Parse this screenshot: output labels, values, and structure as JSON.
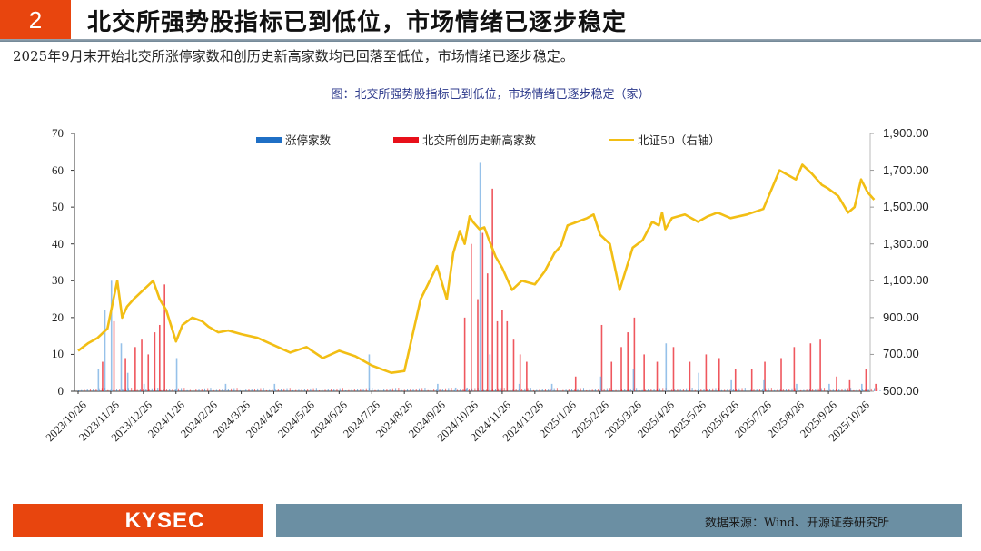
{
  "header": {
    "section_number": "2",
    "title": "北交所强势股指标已到低位，市场情绪已逐步稳定",
    "accent_color": "#e8450e"
  },
  "summary": "2025年9月末开始北交所涨停家数和创历史新高家数均已回落至低位，市场情绪已逐步稳定。",
  "figure_title": "图：北交所强势股指标已到低位，市场情绪已逐步稳定（家）",
  "footer": {
    "logo_text": "KYSEC",
    "source": "数据来源：Wind、开源证券研究所"
  },
  "chart_data": {
    "type": "bar+line",
    "title": "北交所强势股指标已到低位，市场情绪已逐步稳定（家）",
    "legend_position": "top",
    "legend": [
      {
        "name": "涨停家数",
        "color": "#1f6fc5",
        "type": "bar"
      },
      {
        "name": "北交所创历史新高家数",
        "color": "#e8101a",
        "type": "bar"
      },
      {
        "name": "北证50（右轴）",
        "color": "#f2be14",
        "type": "line"
      }
    ],
    "left_axis": {
      "min": 0,
      "max": 70,
      "ticks": [
        "0",
        "10",
        "20",
        "30",
        "40",
        "50",
        "60",
        "70"
      ]
    },
    "right_axis": {
      "min": 500,
      "max": 1900,
      "ticks": [
        "500.00",
        "700.00",
        "900.00",
        "1,100.00",
        "1,300.00",
        "1,500.00",
        "1,700.00",
        "1,900.00"
      ]
    },
    "x_ticks": [
      "2023/10/26",
      "2023/11/26",
      "2023/12/26",
      "2024/1/26",
      "2024/2/26",
      "2024/3/26",
      "2024/4/26",
      "2024/5/26",
      "2024/6/26",
      "2024/7/26",
      "2024/8/26",
      "2024/9/26",
      "2024/10/26",
      "2024/11/26",
      "2024/12/26",
      "2025/1/26",
      "2025/2/26",
      "2025/3/26",
      "2025/4/26",
      "2025/5/26",
      "2025/6/26",
      "2025/7/26",
      "2025/8/26",
      "2025/9/26",
      "2025/10/26"
    ],
    "series": [
      {
        "name": "北证50（右轴）",
        "axis": "right",
        "x_month_index": [
          0,
          0.3,
          0.6,
          0.9,
          1.2,
          1.35,
          1.5,
          1.7,
          2.0,
          2.3,
          2.5,
          2.7,
          3.0,
          3.2,
          3.5,
          3.8,
          4.0,
          4.3,
          4.6,
          5.0,
          5.5,
          6.0,
          6.5,
          7.0,
          7.5,
          8.0,
          8.5,
          9.0,
          9.3,
          9.6,
          10.0,
          10.5,
          11.0,
          11.3,
          11.5,
          11.7,
          11.85,
          12.0,
          12.1,
          12.3,
          12.45,
          12.6,
          12.8,
          13.0,
          13.3,
          13.6,
          14.0,
          14.3,
          14.6,
          14.8,
          15.0,
          15.3,
          15.6,
          15.8,
          16.0,
          16.3,
          16.6,
          17.0,
          17.3,
          17.6,
          17.8,
          17.9,
          18.0,
          18.2,
          18.6,
          19.0,
          19.3,
          19.6,
          20.0,
          20.5,
          21.0,
          21.5,
          22.0,
          22.2,
          22.5,
          22.8,
          23.0,
          23.3,
          23.6,
          23.8,
          24.0,
          24.2,
          24.4
        ],
        "values": [
          720,
          760,
          790,
          840,
          1100,
          900,
          960,
          1000,
          1050,
          1100,
          1000,
          940,
          770,
          860,
          900,
          880,
          850,
          820,
          830,
          810,
          790,
          750,
          710,
          740,
          680,
          720,
          690,
          640,
          620,
          600,
          610,
          1000,
          1180,
          1000,
          1250,
          1370,
          1300,
          1450,
          1420,
          1380,
          1390,
          1320,
          1230,
          1170,
          1050,
          1100,
          1080,
          1150,
          1250,
          1290,
          1400,
          1420,
          1440,
          1460,
          1350,
          1300,
          1050,
          1280,
          1320,
          1420,
          1400,
          1470,
          1380,
          1440,
          1460,
          1420,
          1450,
          1470,
          1440,
          1460,
          1490,
          1700,
          1650,
          1730,
          1680,
          1620,
          1600,
          1560,
          1470,
          1500,
          1650,
          1580,
          1540
        ]
      },
      {
        "name": "涨停家数",
        "axis": "left",
        "x_month_index": [
          0.6,
          0.8,
          1.0,
          1.3,
          1.5,
          2.0,
          3.0,
          4.5,
          6.0,
          8.9,
          11.0,
          11.55,
          11.9,
          12.3,
          12.6,
          13.5,
          14.5,
          16.0,
          17.0,
          18.0,
          19.0,
          20.0,
          21.0,
          22.0,
          23.0,
          24.0
        ],
        "values": [
          6,
          22,
          30,
          13,
          5,
          2,
          9,
          2,
          2,
          10,
          2,
          1,
          1,
          62,
          10,
          2,
          2,
          4,
          6,
          13,
          5,
          3,
          3,
          2,
          2,
          2
        ]
      },
      {
        "name": "北交所创历史新高家数",
        "axis": "left",
        "x_month_index": [
          0.7,
          1.05,
          1.4,
          1.7,
          1.9,
          2.1,
          2.3,
          2.45,
          2.6,
          11.8,
          12.0,
          12.2,
          12.35,
          12.5,
          12.65,
          12.8,
          12.95,
          13.1,
          13.3,
          13.5,
          13.7,
          15.2,
          16.0,
          16.3,
          16.6,
          16.8,
          17.0,
          17.3,
          17.7,
          18.2,
          18.7,
          19.2,
          19.6,
          20.1,
          20.6,
          21.0,
          21.5,
          21.9,
          22.4,
          22.7,
          23.2,
          23.6,
          24.1,
          24.4
        ],
        "values": [
          8,
          19,
          9,
          12,
          14,
          10,
          16,
          18,
          29,
          20,
          40,
          25,
          43,
          32,
          55,
          19,
          22,
          19,
          14,
          10,
          8,
          4,
          18,
          8,
          12,
          16,
          20,
          10,
          8,
          12,
          8,
          10,
          9,
          6,
          6,
          8,
          9,
          12,
          13,
          14,
          4,
          3,
          6,
          2
        ]
      }
    ]
  }
}
